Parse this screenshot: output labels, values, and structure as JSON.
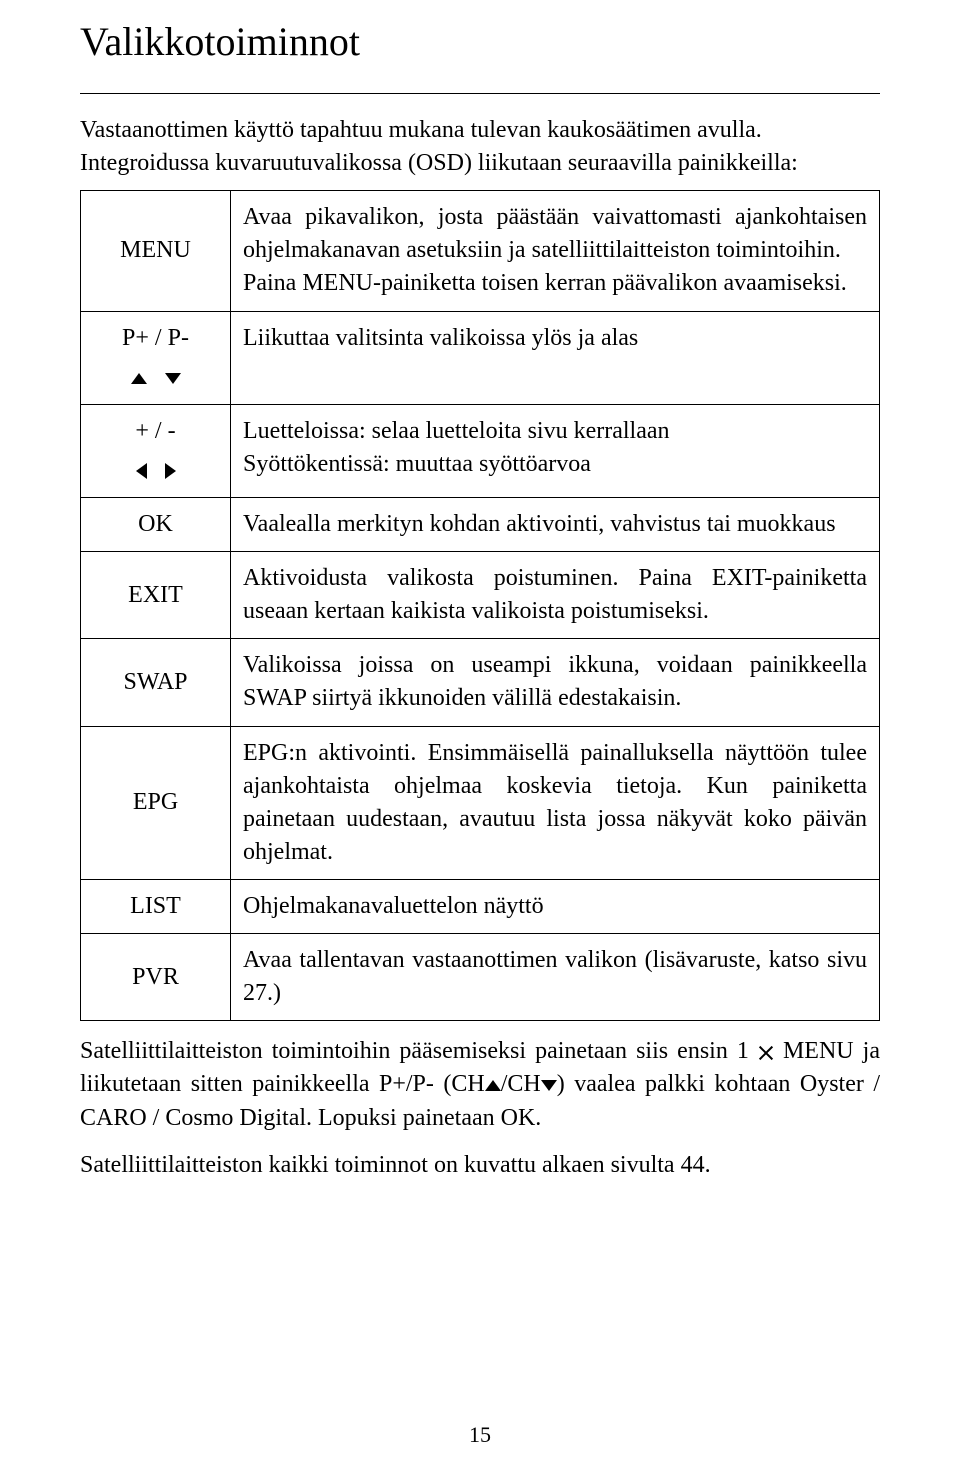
{
  "title": "Valikkotoiminnot",
  "intro": "Vastaanottimen käyttö tapahtuu mukana tulevan kaukosäätimen avulla. Integroidussa kuvaruutuvalikossa (OSD) liikutaan seuraavilla painikkeilla:",
  "rows": {
    "menu": {
      "key": "MENU",
      "desc": "Avaa pikavalikon, josta päästään vaivattomasti ajankohtaisen ohjelmakanavan asetuksiin ja satelliittilaitteiston toimintoihin.\nPaina MENU-painiketta toisen kerran päävalikon avaamiseksi."
    },
    "pplus": {
      "key": "P+ / P-",
      "desc": "Liikuttaa valitsinta valikoissa ylös ja alas"
    },
    "plusminus": {
      "key": "+ / -",
      "desc1": "Luetteloissa: selaa luetteloita sivu kerrallaan",
      "desc2": "Syöttökentissä: muuttaa syöttöarvoa"
    },
    "ok": {
      "key": "OK",
      "desc": "Vaalealla merkityn kohdan aktivointi, vahvistus tai muokkaus"
    },
    "exit": {
      "key": "EXIT",
      "desc": "Aktivoidusta valikosta poistuminen. Paina EXIT-painiketta useaan kertaan kaikista valikoista poistumiseksi."
    },
    "swap": {
      "key": "SWAP",
      "desc": "Valikoissa joissa on useampi ikkuna, voidaan painikkeella SWAP siirtyä ikkunoiden välillä edestakaisin."
    },
    "epg": {
      "key": "EPG",
      "desc": "EPG:n aktivointi. Ensimmäisellä painalluksella näyttöön tulee ajankohtaista ohjelmaa koskevia tietoja. Kun painiketta painetaan uudestaan, avautuu lista jossa näkyvät koko päivän ohjelmat."
    },
    "list": {
      "key": "LIST",
      "desc": "Ohjelmakanavaluettelon näyttö"
    },
    "pvr": {
      "key": "PVR",
      "desc": "Avaa tallentavan vastaanottimen valikon (lisävaruste, katso sivu 27.)"
    }
  },
  "after1a": "Satelliittilaitteiston toimintoihin pääsemiseksi painetaan siis ensin 1 ",
  "after1b": " MENU ja liikutetaan sitten painikkeella P+/P- (CH",
  "after1c": "/CH",
  "after1d": ") vaalea palkki kohtaan Oyster / CARO / Cosmo Digital. Lopuksi painetaan OK.",
  "after2": "Satelliittilaitteiston kaikki toiminnot on kuvattu alkaen sivulta 44.",
  "pageNum": "15"
}
